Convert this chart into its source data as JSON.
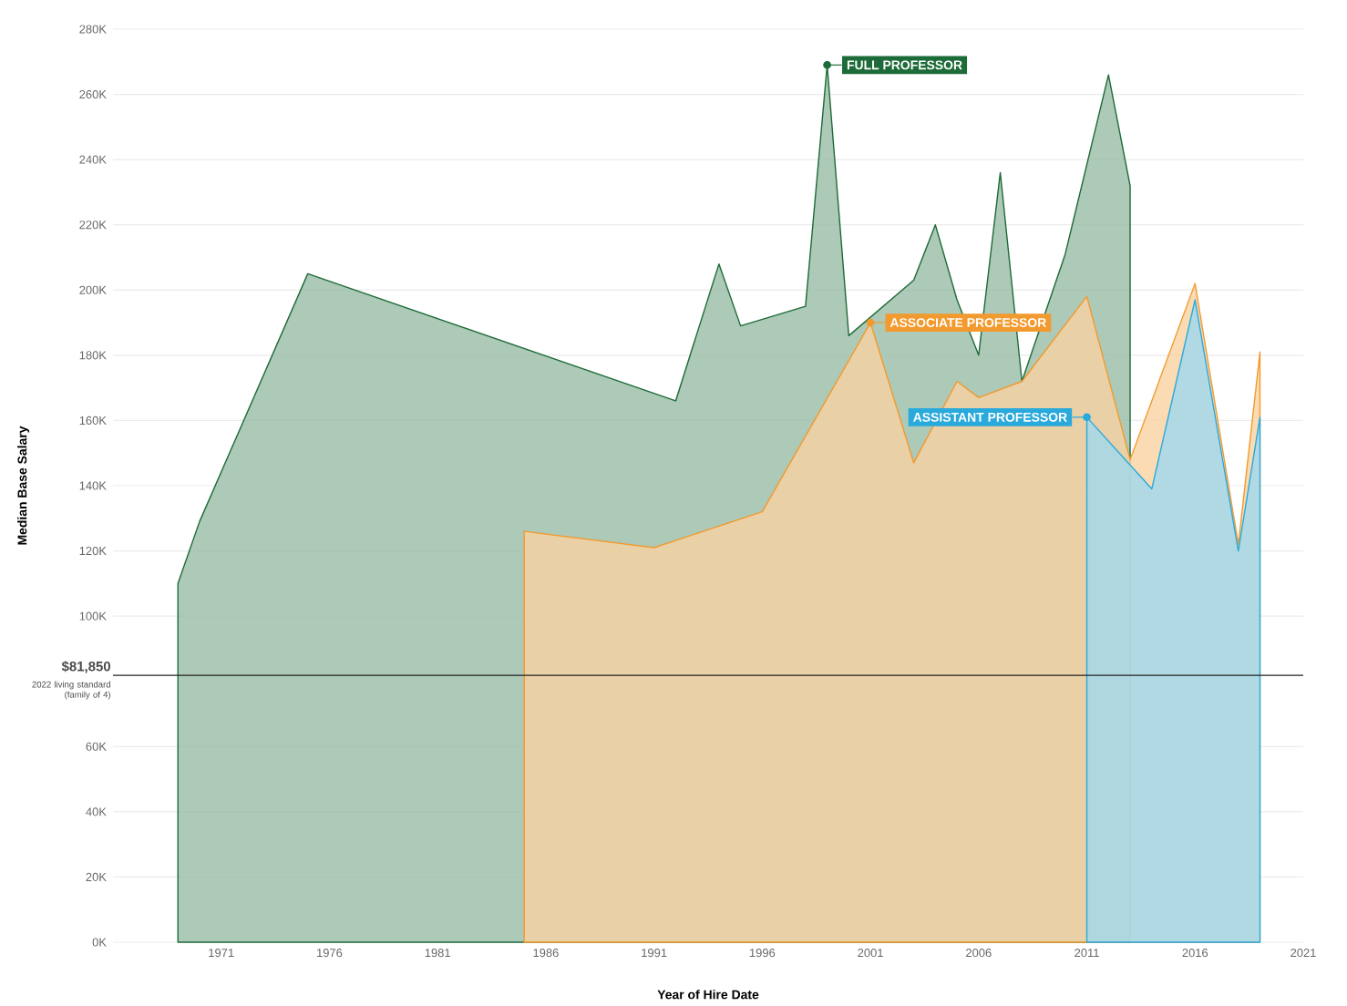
{
  "chart_data": {
    "type": "area",
    "xlabel": "Year of Hire Date",
    "ylabel": "Median Base Salary",
    "series": [
      {
        "name": "FULL PROFESSOR",
        "color": "#1d6b38",
        "x": [
          1969,
          1970,
          1975,
          1992,
          1994,
          1995,
          1998,
          1999,
          2000,
          2003,
          2004,
          2005,
          2006,
          2007,
          2008,
          2010,
          2012,
          2013
        ],
        "values": [
          110000,
          129000,
          205000,
          166000,
          208000,
          189000,
          195000,
          269000,
          186000,
          203000,
          220000,
          197000,
          180000,
          236000,
          172000,
          211000,
          266000,
          232000
        ]
      },
      {
        "name": "ASSOCIATE PROFESSOR",
        "color": "#f29a2e",
        "x": [
          1985,
          1991,
          1996,
          2001,
          2003,
          2005,
          2006,
          2008,
          2011,
          2013,
          2016,
          2018,
          2019
        ],
        "values": [
          126000,
          121000,
          132000,
          190000,
          147000,
          172000,
          167000,
          172000,
          198000,
          148000,
          202000,
          122000,
          181000
        ]
      },
      {
        "name": "ASSISTANT PROFESSOR",
        "color": "#29a9dc",
        "x": [
          2011,
          2014,
          2016,
          2018,
          2019
        ],
        "values": [
          161000,
          139000,
          197000,
          120000,
          161000
        ]
      }
    ],
    "xlim": [
      1966,
      2021
    ],
    "xticks": [
      1971,
      1976,
      1981,
      1986,
      1991,
      1996,
      2001,
      2006,
      2011,
      2016,
      2021
    ],
    "ylim": [
      0,
      280000
    ],
    "yticks": [
      {
        "value": 0,
        "label": "0K"
      },
      {
        "value": 20000,
        "label": "20K"
      },
      {
        "value": 40000,
        "label": "40K"
      },
      {
        "value": 60000,
        "label": "60K"
      },
      {
        "value": 100000,
        "label": "100K"
      },
      {
        "value": 120000,
        "label": "120K"
      },
      {
        "value": 140000,
        "label": "140K"
      },
      {
        "value": 160000,
        "label": "160K"
      },
      {
        "value": 180000,
        "label": "180K"
      },
      {
        "value": 200000,
        "label": "200K"
      },
      {
        "value": 220000,
        "label": "220K"
      },
      {
        "value": 240000,
        "label": "240K"
      },
      {
        "value": 260000,
        "label": "260K"
      },
      {
        "value": 280000,
        "label": "280K"
      }
    ],
    "ref_lines": [
      {
        "axis": "y",
        "value": 81850,
        "label": "$81,850",
        "color": "#222222"
      }
    ],
    "annotations": [
      "2022 living standard (family of 4)"
    ],
    "grid": "y",
    "legend": "top"
  }
}
